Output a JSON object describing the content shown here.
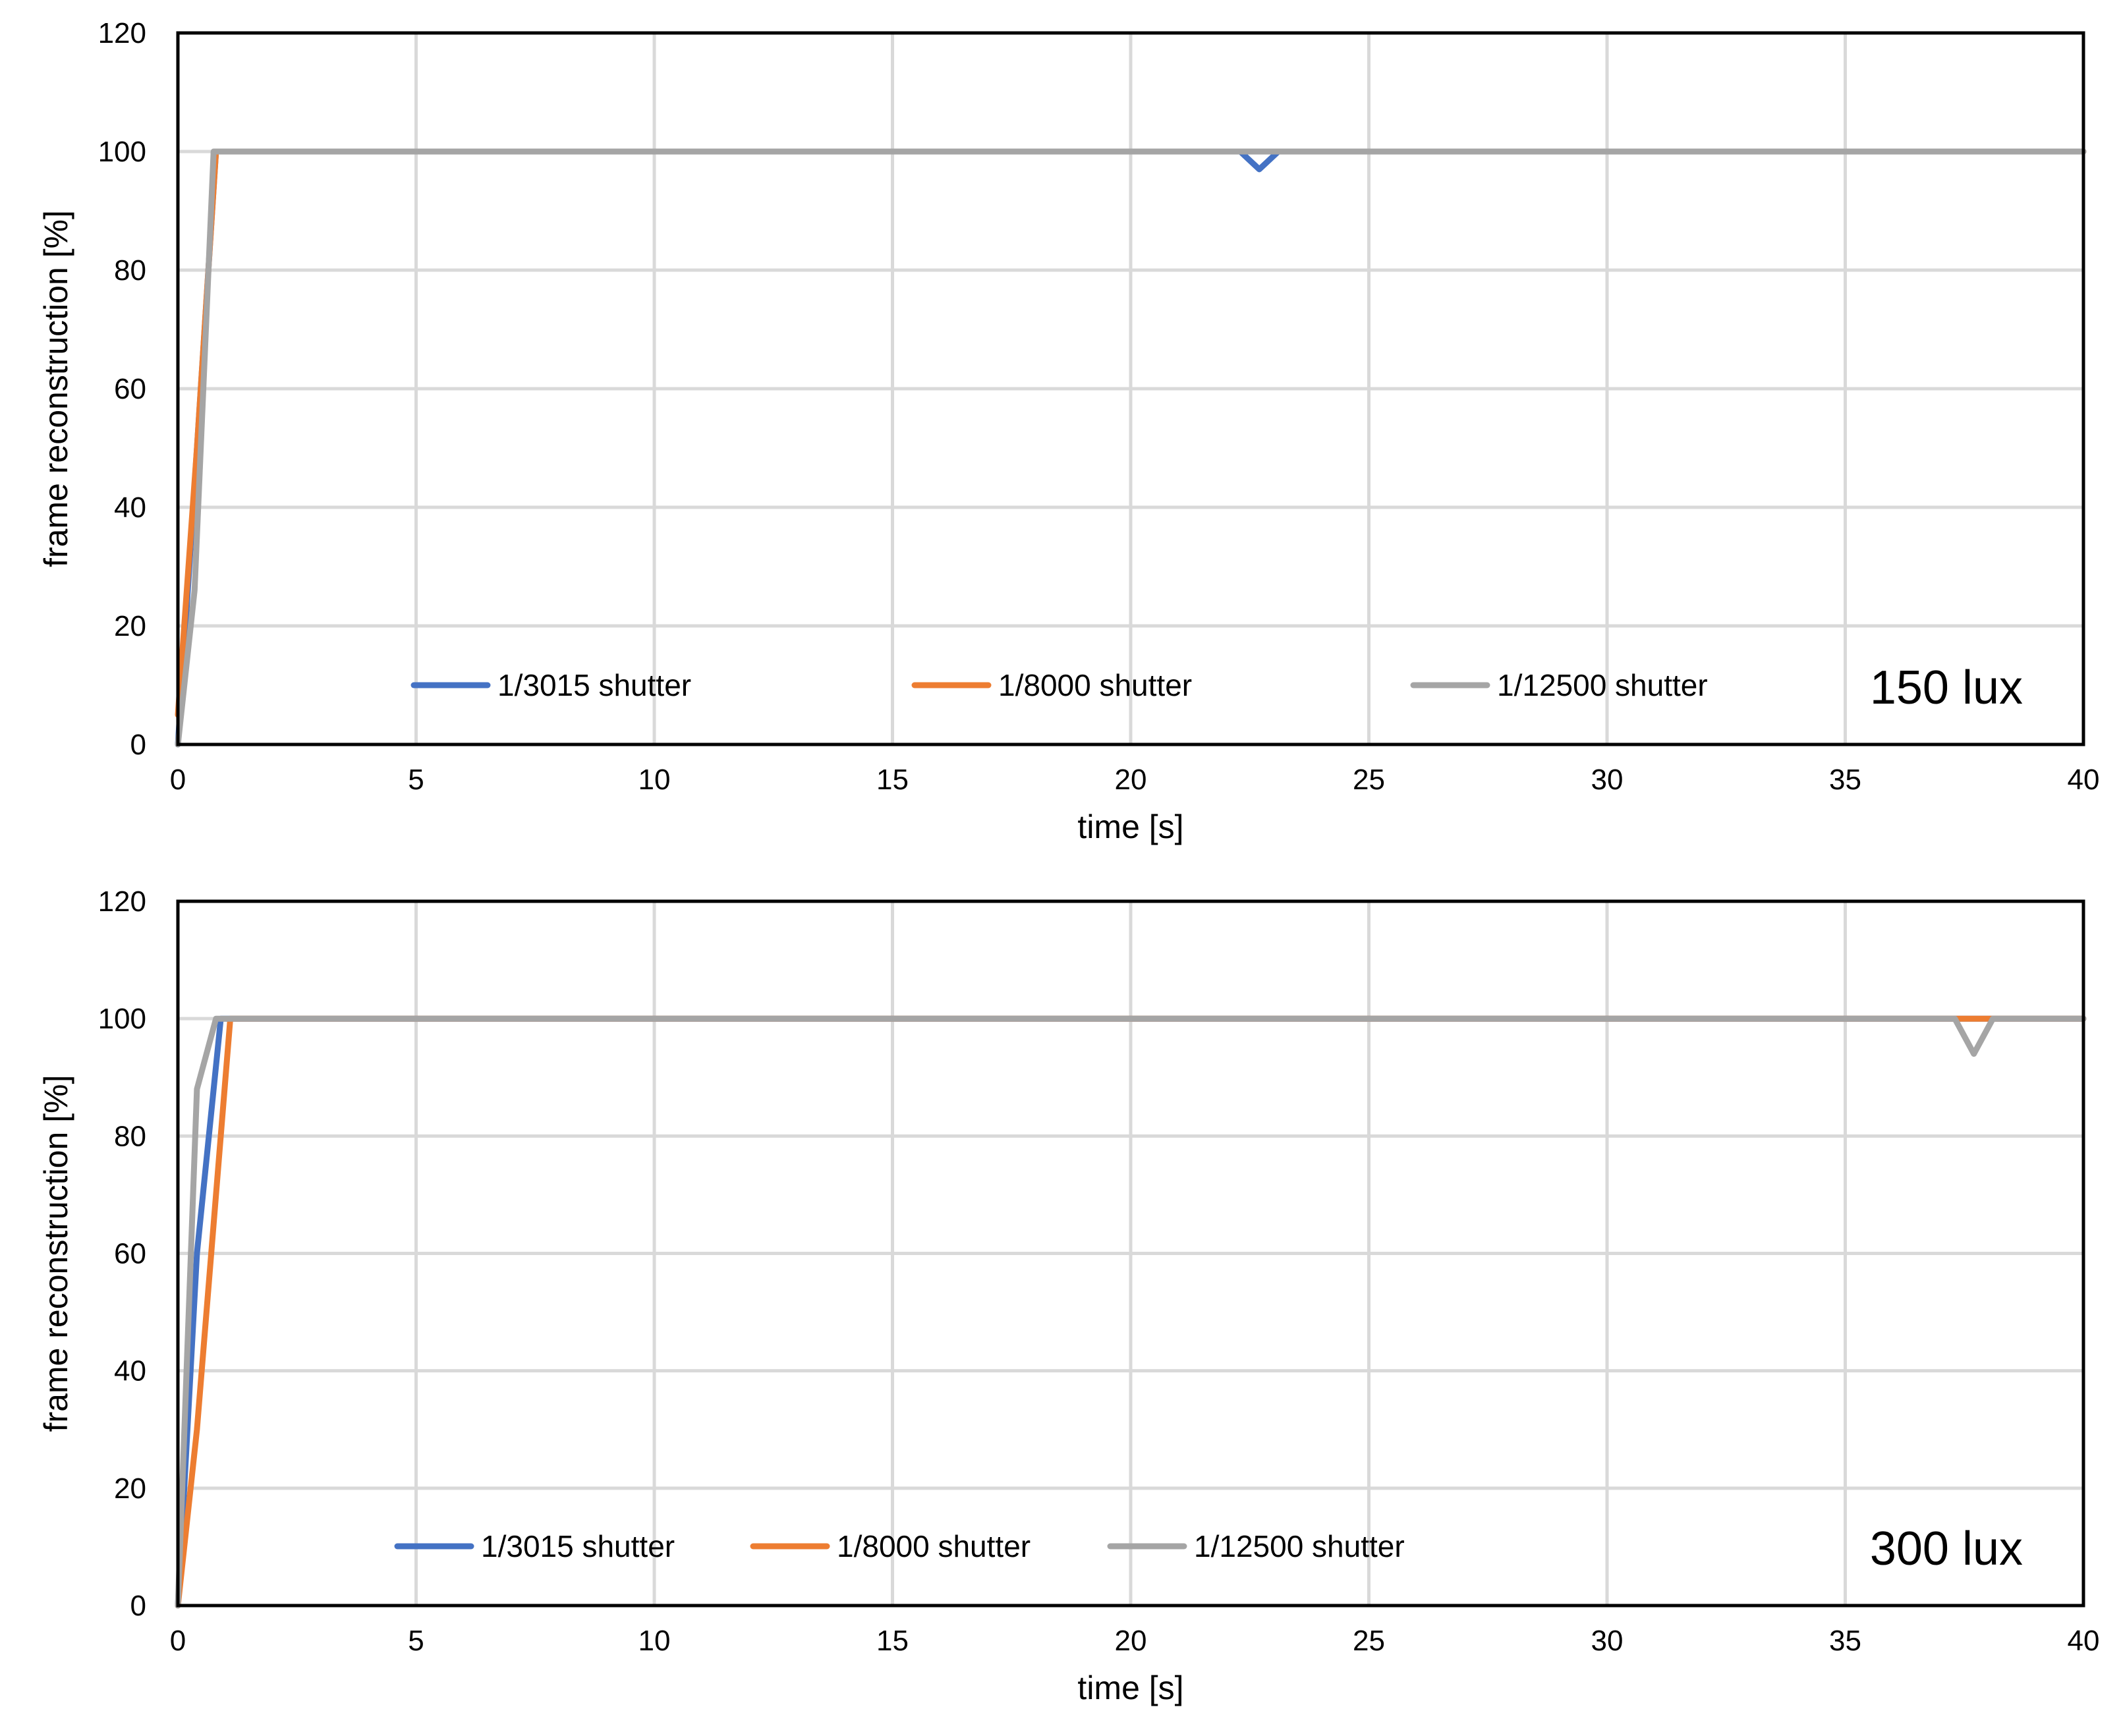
{
  "chart_data": [
    {
      "type": "line",
      "annotation": "150 lux",
      "xlabel": "time [s]",
      "ylabel": "frame reconstruction [%]",
      "xlim": [
        0,
        40
      ],
      "ylim": [
        0,
        120
      ],
      "xticks": [
        "0",
        "5",
        "10",
        "15",
        "20",
        "25",
        "30",
        "35",
        "40"
      ],
      "yticks": [
        "0",
        "20",
        "40",
        "60",
        "80",
        "100",
        "120"
      ],
      "grid": true,
      "legend_position": "bottom-inside",
      "series": [
        {
          "name": "1/3015 shutter",
          "color": "#4472C4",
          "points": [
            [
              0,
              0
            ],
            [
              0.4,
              50
            ],
            [
              0.8,
              100
            ],
            [
              22.3,
              100
            ],
            [
              22.7,
              97
            ],
            [
              23.1,
              100
            ],
            [
              40,
              100
            ]
          ]
        },
        {
          "name": "1/8000 shutter",
          "color": "#ED7D31",
          "points": [
            [
              0,
              5
            ],
            [
              0.4,
              50
            ],
            [
              0.8,
              100
            ],
            [
              40,
              100
            ]
          ]
        },
        {
          "name": "1/12500 shutter",
          "color": "#A5A5A5",
          "points": [
            [
              0,
              0
            ],
            [
              0.35,
              26
            ],
            [
              0.75,
              100
            ],
            [
              40,
              100
            ]
          ]
        }
      ]
    },
    {
      "type": "line",
      "annotation": "300 lux",
      "xlabel": "time [s]",
      "ylabel": "frame reconstruction [%]",
      "xlim": [
        0,
        40
      ],
      "ylim": [
        0,
        120
      ],
      "xticks": [
        "0",
        "5",
        "10",
        "15",
        "20",
        "25",
        "30",
        "35",
        "40"
      ],
      "yticks": [
        "0",
        "20",
        "40",
        "60",
        "80",
        "100",
        "120"
      ],
      "grid": true,
      "legend_position": "bottom-inside",
      "series": [
        {
          "name": "1/3015 shutter",
          "color": "#4472C4",
          "points": [
            [
              0,
              0
            ],
            [
              0.4,
              60
            ],
            [
              0.9,
              100
            ],
            [
              40,
              100
            ]
          ]
        },
        {
          "name": "1/8000 shutter",
          "color": "#ED7D31",
          "points": [
            [
              0,
              0
            ],
            [
              0.4,
              30
            ],
            [
              1.1,
              100
            ],
            [
              40,
              100
            ]
          ]
        },
        {
          "name": "1/12500 shutter",
          "color": "#A5A5A5",
          "points": [
            [
              0,
              0
            ],
            [
              0.4,
              88
            ],
            [
              0.8,
              100
            ],
            [
              37.3,
              100
            ],
            [
              37.7,
              94
            ],
            [
              38.1,
              100
            ],
            [
              40,
              100
            ]
          ]
        }
      ]
    }
  ]
}
